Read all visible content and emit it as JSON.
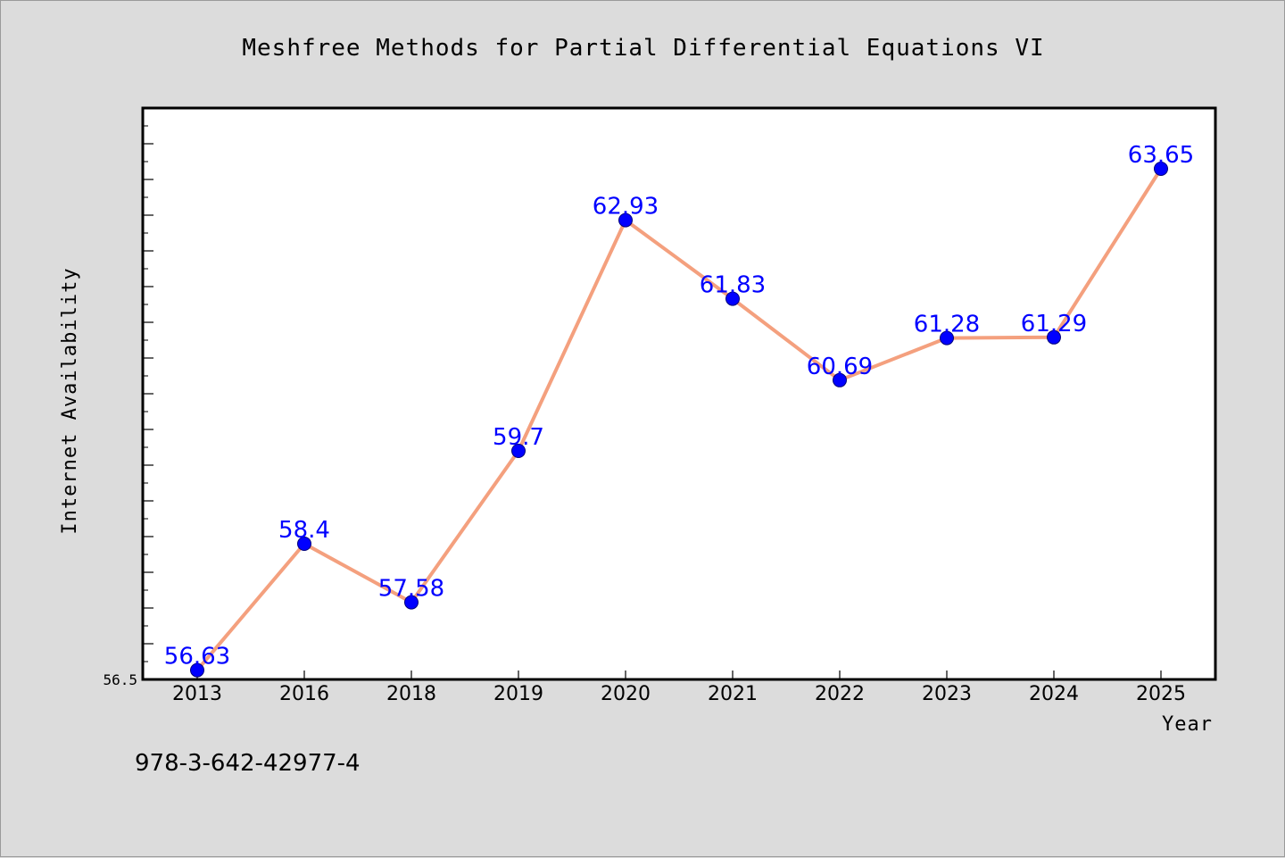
{
  "chart_data": {
    "type": "line",
    "title": "Meshfree Methods for Partial Differential Equations VI",
    "xlabel": "Year",
    "ylabel": "Internet Availability",
    "categories": [
      "2013",
      "2016",
      "2018",
      "2019",
      "2020",
      "2021",
      "2022",
      "2023",
      "2024",
      "2025"
    ],
    "values": [
      56.63,
      58.4,
      57.58,
      59.7,
      62.93,
      61.83,
      60.69,
      61.28,
      61.29,
      63.65
    ],
    "data_labels": [
      "56.63",
      "58.4",
      "57.58",
      "59.7",
      "62.93",
      "61.83",
      "60.69",
      "61.28",
      "61.29",
      "63.65"
    ],
    "ylim": [
      56.5,
      64.5
    ],
    "ytick_shown": "56.5",
    "grid": false,
    "legend": "none",
    "line_color": "#f4a07e",
    "marker_color": "#0000ff",
    "label_color": "#0000ff"
  },
  "footer": {
    "isbn": "978-3-642-42977-4"
  }
}
